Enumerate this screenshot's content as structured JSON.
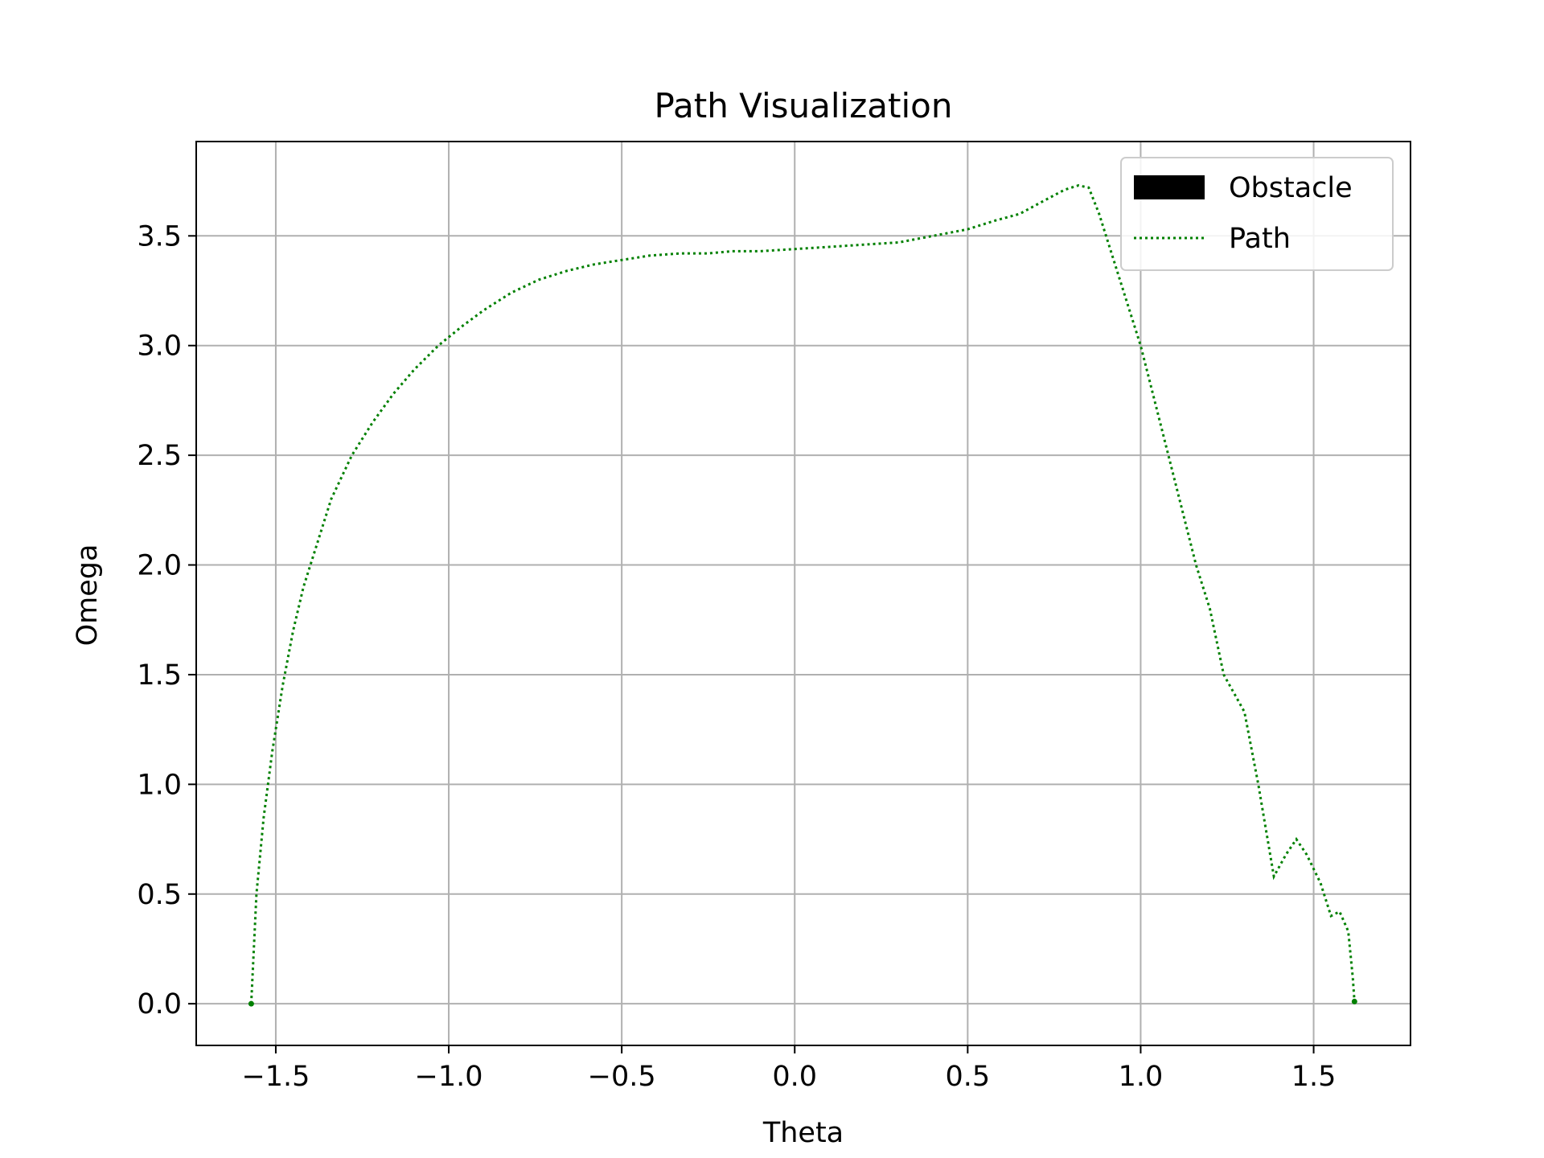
{
  "chart_data": {
    "type": "line",
    "title": "Path Visualization",
    "xlabel": "Theta",
    "ylabel": "Omega",
    "xlim": [
      -1.73,
      1.78
    ],
    "ylim": [
      -0.19,
      3.93
    ],
    "xticks": [
      -1.5,
      -1.0,
      -0.5,
      0.0,
      0.5,
      1.0,
      1.5
    ],
    "xtick_labels": [
      "−1.5",
      "−1.0",
      "−0.5",
      "0.0",
      "0.5",
      "1.0",
      "1.5"
    ],
    "yticks": [
      0.0,
      0.5,
      1.0,
      1.5,
      2.0,
      2.5,
      3.0,
      3.5
    ],
    "ytick_labels": [
      "0.0",
      "0.5",
      "1.0",
      "1.5",
      "2.0",
      "2.5",
      "3.0",
      "3.5"
    ],
    "grid": true,
    "legend": {
      "placement": "top-right",
      "entries": [
        {
          "label": "Obstacle",
          "kind": "patch",
          "color": "#000000"
        },
        {
          "label": "Path",
          "kind": "dotted-line",
          "color": "#008000"
        }
      ]
    },
    "series": [
      {
        "name": "Path",
        "color": "#008000",
        "style": "dotted",
        "x": [
          -1.571,
          -1.556,
          -1.535,
          -1.51,
          -1.48,
          -1.45,
          -1.42,
          -1.38,
          -1.34,
          -1.28,
          -1.22,
          -1.16,
          -1.1,
          -1.03,
          -0.96,
          -0.9,
          -0.82,
          -0.74,
          -0.66,
          -0.58,
          -0.5,
          -0.42,
          -0.33,
          -0.25,
          -0.18,
          -0.1,
          0.0,
          0.1,
          0.2,
          0.3,
          0.4,
          0.5,
          0.58,
          0.65,
          0.72,
          0.78,
          0.82,
          0.85,
          0.88,
          0.92,
          0.96,
          1.0,
          1.04,
          1.08,
          1.12,
          1.16,
          1.2,
          1.24,
          1.3,
          1.34,
          1.385,
          1.42,
          1.45,
          1.48,
          1.52,
          1.55,
          1.575,
          1.6,
          1.613,
          1.618
        ],
        "y": [
          0.0,
          0.5,
          0.85,
          1.15,
          1.45,
          1.7,
          1.9,
          2.1,
          2.3,
          2.5,
          2.65,
          2.78,
          2.89,
          3.0,
          3.09,
          3.16,
          3.24,
          3.3,
          3.34,
          3.37,
          3.39,
          3.41,
          3.42,
          3.42,
          3.43,
          3.43,
          3.44,
          3.45,
          3.46,
          3.47,
          3.5,
          3.53,
          3.57,
          3.6,
          3.66,
          3.71,
          3.73,
          3.72,
          3.6,
          3.4,
          3.2,
          3.0,
          2.75,
          2.5,
          2.25,
          2.0,
          1.8,
          1.5,
          1.33,
          1.0,
          0.58,
          0.68,
          0.75,
          0.68,
          0.55,
          0.4,
          0.42,
          0.33,
          0.12,
          0.01
        ]
      }
    ]
  }
}
